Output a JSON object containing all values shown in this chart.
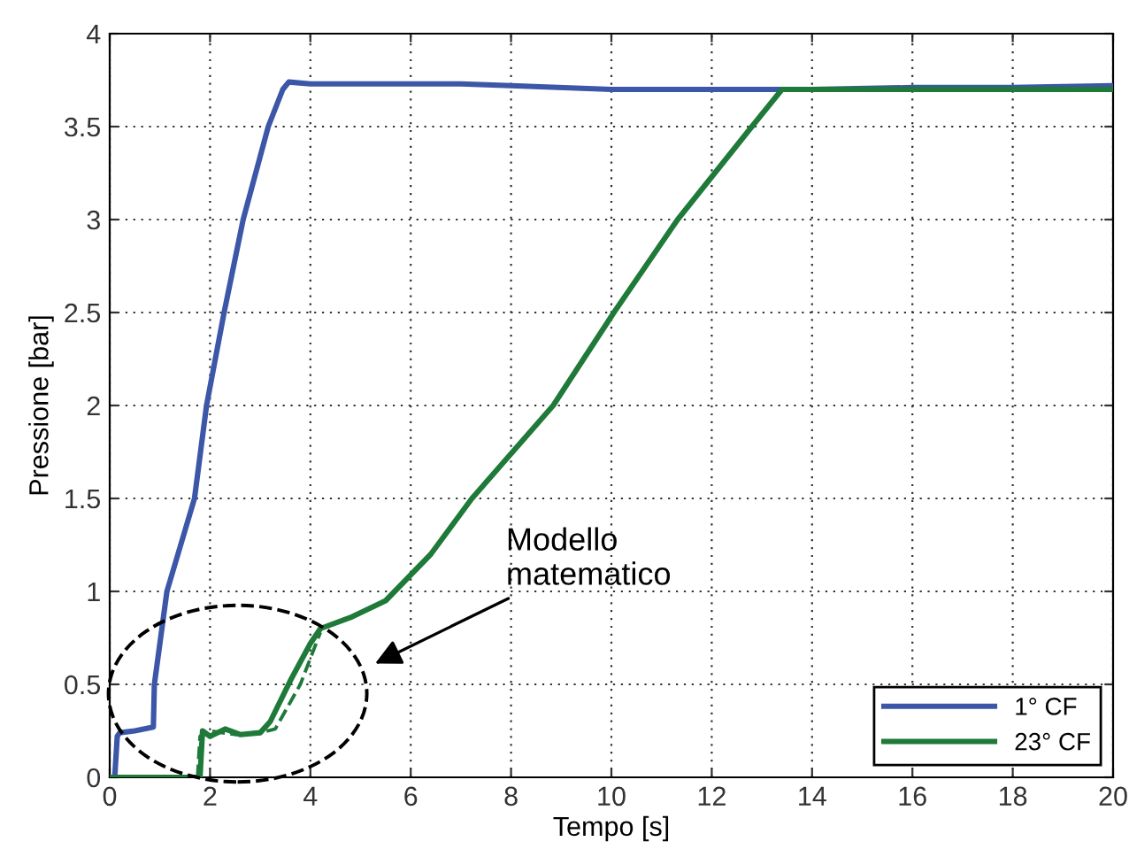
{
  "chart_data": {
    "type": "line",
    "xlabel": "Tempo [s]",
    "ylabel": "Pressione [bar]",
    "xlim": [
      0,
      20
    ],
    "ylim": [
      0,
      4
    ],
    "xticks": [
      0,
      2,
      4,
      6,
      8,
      10,
      12,
      14,
      16,
      18,
      20
    ],
    "yticks": [
      0,
      0.5,
      1,
      1.5,
      2,
      2.5,
      3,
      3.5,
      4
    ],
    "grid": true,
    "legend": "bottom right",
    "line_style": "solid",
    "marker": "none",
    "series": [
      {
        "name": "1° CF",
        "color": "#3c56a8",
        "x": [
          0,
          0.1,
          0.15,
          0.2,
          0.5,
          0.87,
          0.89,
          1.14,
          1.69,
          1.93,
          2.28,
          2.66,
          3.16,
          3.45,
          3.57,
          4,
          6,
          7,
          8,
          10,
          12,
          14,
          16,
          18,
          20
        ],
        "values": [
          0,
          0,
          0.22,
          0.24,
          0.25,
          0.27,
          0.5,
          1,
          1.5,
          2,
          2.5,
          3,
          3.5,
          3.7,
          3.74,
          3.73,
          3.73,
          3.73,
          3.72,
          3.7,
          3.7,
          3.7,
          3.71,
          3.71,
          3.72
        ]
      },
      {
        "name": "23° CF",
        "color": "#1f7a3a",
        "x": [
          0,
          1.8,
          1.85,
          2.0,
          2.3,
          2.6,
          3.0,
          3.2,
          3.6,
          4.0,
          4.2,
          4.8,
          5.5,
          6.4,
          7.22,
          8.84,
          10.05,
          11.32,
          12.8,
          13.4,
          14,
          16,
          18,
          20
        ],
        "values": [
          0,
          0,
          0.25,
          0.22,
          0.26,
          0.23,
          0.24,
          0.3,
          0.52,
          0.72,
          0.8,
          0.86,
          0.95,
          1.2,
          1.5,
          2,
          2.5,
          3,
          3.5,
          3.7,
          3.7,
          3.7,
          3.7,
          3.7
        ]
      },
      {
        "color": "#1f7a3a",
        "line_style": "dashed",
        "x": [
          1.75,
          1.8,
          2.0,
          2.5,
          3.0,
          3.3,
          3.8,
          4.2
        ],
        "values": [
          0,
          0.22,
          0.25,
          0.23,
          0.24,
          0.26,
          0.5,
          0.78
        ]
      }
    ],
    "annotations": [
      "Modello\nmatematico"
    ]
  }
}
